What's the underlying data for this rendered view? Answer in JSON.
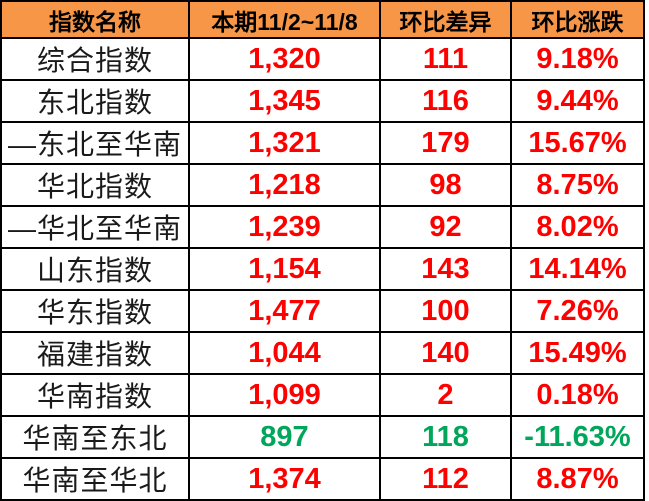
{
  "chart_data": {
    "type": "table",
    "columns": [
      "指数名称",
      "本期11/2~11/8",
      "环比差异",
      "环比涨跌"
    ],
    "rows": [
      {
        "name": "综合指数",
        "current": "1,320",
        "diff": "111",
        "change": "9.18%",
        "trend": "up"
      },
      {
        "name": "东北指数",
        "current": "1,345",
        "diff": "116",
        "change": "9.44%",
        "trend": "up"
      },
      {
        "name": "—东北至华南",
        "current": "1,321",
        "diff": "179",
        "change": "15.67%",
        "trend": "up"
      },
      {
        "name": "华北指数",
        "current": "1,218",
        "diff": "98",
        "change": "8.75%",
        "trend": "up"
      },
      {
        "name": "—华北至华南",
        "current": "1,239",
        "diff": "92",
        "change": "8.02%",
        "trend": "up"
      },
      {
        "name": "山东指数",
        "current": "1,154",
        "diff": "143",
        "change": "14.14%",
        "trend": "up"
      },
      {
        "name": "华东指数",
        "current": "1,477",
        "diff": "100",
        "change": "7.26%",
        "trend": "up"
      },
      {
        "name": "福建指数",
        "current": "1,044",
        "diff": "140",
        "change": "15.49%",
        "trend": "up"
      },
      {
        "name": "华南指数",
        "current": "1,099",
        "diff": "2",
        "change": "0.18%",
        "trend": "up"
      },
      {
        "name": "华南至东北",
        "current": "897",
        "diff": "118",
        "change": "-11.63%",
        "trend": "down"
      },
      {
        "name": "华南至华北",
        "current": "1,374",
        "diff": "112",
        "change": "8.87%",
        "trend": "up"
      }
    ]
  },
  "colors": {
    "header_bg": "#F79646",
    "header_text": "#000000",
    "up_value": "#FF0000",
    "down_value": "#00A65A",
    "border": "#000000",
    "name_text": "#1A1A1A"
  }
}
